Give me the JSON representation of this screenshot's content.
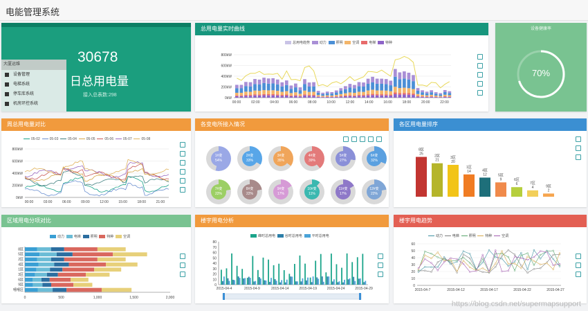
{
  "app": {
    "title": "电能管理系统"
  },
  "kpi": {
    "value": "30678",
    "label": "日总用电量",
    "sub": "接入总表数:298"
  },
  "menu": {
    "header": "大厦运维",
    "items": [
      {
        "label": "设备管理",
        "icon": "wrench-icon"
      },
      {
        "label": "电梯系统",
        "icon": "elevator-icon"
      },
      {
        "label": "停车库系统",
        "icon": "parking-icon"
      },
      {
        "label": "机房环控系统",
        "icon": "server-icon"
      }
    ]
  },
  "rate": {
    "title": "设备健康率",
    "value": 70,
    "display": "70%"
  },
  "realtime": {
    "title": "总用电量实时曲线",
    "legend": [
      "总用电趋势",
      "动力",
      "照明",
      "空调",
      "电梯",
      "特种"
    ],
    "y_ticks": [
      "800kW",
      "600kW",
      "400kW",
      "200kW",
      "0kW"
    ],
    "x_ticks": [
      "00:00",
      "02:00",
      "04:00",
      "06:00",
      "08:00",
      "10:00",
      "12:00",
      "14:00",
      "16:00",
      "18:00",
      "20:00",
      "22:00"
    ]
  },
  "weekly": {
    "title": "周总用电量对比",
    "legend": [
      "05-02",
      "05-03",
      "05-04",
      "05-05",
      "05-06",
      "05-07",
      "05-08"
    ],
    "y_ticks": [
      "800kW",
      "600kW",
      "400kW",
      "200kW",
      "0kW"
    ],
    "x_ticks": [
      "00:00",
      "03:00",
      "06:00",
      "09:00",
      "12:00",
      "15:00",
      "18:00",
      "21:00"
    ]
  },
  "meters": {
    "title": "各变电所接入情况",
    "rings": [
      {
        "label": "1#变",
        "value": "54%"
      },
      {
        "label": "2#变",
        "value": "33%"
      },
      {
        "label": "3#变",
        "value": "35%"
      },
      {
        "label": "4#变",
        "value": "39%"
      },
      {
        "label": "5#变",
        "value": "27%"
      },
      {
        "label": "6#变",
        "value": "32%"
      },
      {
        "label": "7#变",
        "value": "22%"
      },
      {
        "label": "8#变",
        "value": "22%"
      },
      {
        "label": "9#变",
        "value": "17%"
      },
      {
        "label": "10#变",
        "value": "11%"
      },
      {
        "label": "11#变",
        "value": "17%"
      },
      {
        "label": "12#变",
        "value": "22%"
      }
    ]
  },
  "ranking": {
    "title": "各区用电量排序",
    "bars": [
      {
        "name": "8区",
        "value": "25"
      },
      {
        "name": "2区",
        "value": "21"
      },
      {
        "name": "3区",
        "value": "20"
      },
      {
        "name": "1区",
        "value": "14"
      },
      {
        "name": "4区",
        "value": "12"
      },
      {
        "name": "5区",
        "value": "9"
      },
      {
        "name": "6区",
        "value": "6"
      },
      {
        "name": "7区",
        "value": "4"
      },
      {
        "name": "9区",
        "value": "2"
      }
    ]
  },
  "region_compare": {
    "title": "区域用电分项对比",
    "legend": [
      "动力",
      "电梯",
      "照明",
      "特种",
      "空调"
    ],
    "rows": [
      "8区",
      "5区",
      "2区",
      "4区",
      "1区",
      "3区",
      "6区",
      "9区",
      "嘻嘻区"
    ],
    "x_ticks": [
      "0",
      "500",
      "1,000",
      "1,500",
      "2,000"
    ]
  },
  "building_analysis": {
    "title": "楼宇用电分析",
    "legend": [
      "峰时总用电",
      "谷时总用电",
      "平时总用电"
    ],
    "y_ticks": [
      "80",
      "70",
      "60",
      "50",
      "40",
      "30",
      "20",
      "10",
      "0"
    ],
    "x_ticks": [
      "2015-04-4",
      "2015-04-9",
      "2015-04-14",
      "2015-04-19",
      "2015-04-24",
      "2015-04-29"
    ]
  },
  "building_trend": {
    "title": "楼宇用电趋势",
    "legend": [
      "动力",
      "电梯",
      "照明",
      "特种",
      "空调"
    ],
    "y_ticks": [
      "60",
      "50",
      "40",
      "30",
      "20",
      "10",
      "0"
    ],
    "x_ticks": [
      "2015-04-7",
      "2015-04-12",
      "2015-04-17",
      "2015-04-22",
      "2015-04-27"
    ]
  },
  "watermark": "https://blog.csdn.net/supermapsupport",
  "colors": {
    "green": "#17967d",
    "orange": "#f19a3d",
    "blue": "#3b8fd2",
    "red": "#e35f53",
    "lightgreen": "#79c391"
  }
}
